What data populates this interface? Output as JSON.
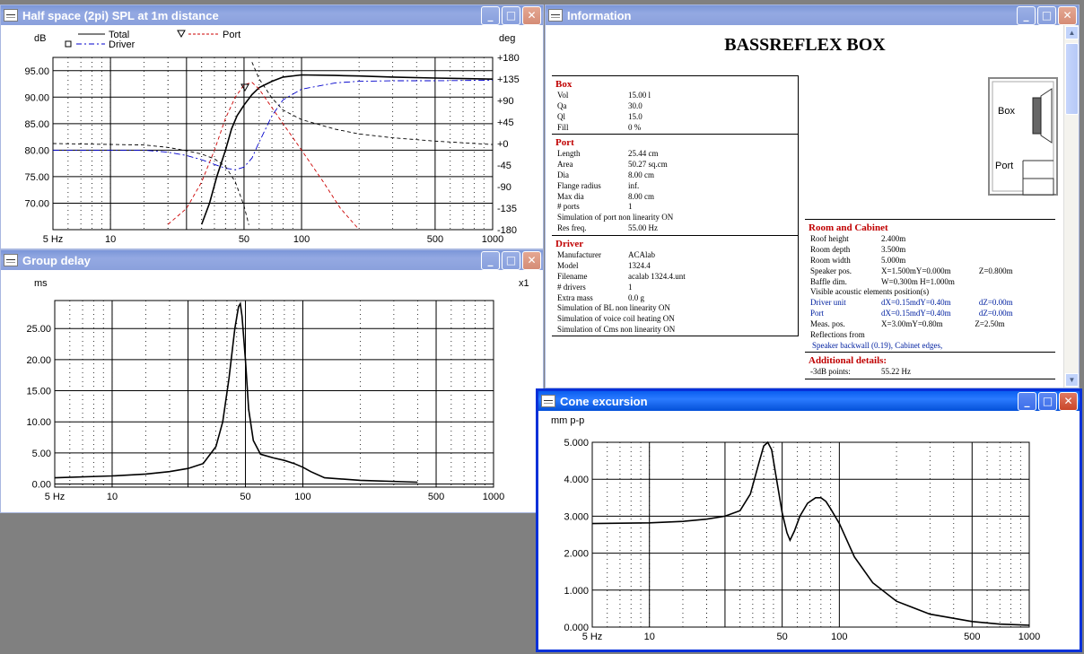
{
  "windows": {
    "spl": {
      "title": "Half space (2pi) SPL at 1m distance",
      "ylabel_left": "dB",
      "ylabel_right": "deg",
      "legend": {
        "total": "Total",
        "driver": "Driver",
        "port": "Port"
      }
    },
    "group_delay": {
      "title": "Group delay",
      "ylabel": "ms",
      "scale": "x1"
    },
    "cone": {
      "title": "Cone excursion",
      "ylabel": "mm p-p"
    },
    "info": {
      "title": "Information"
    }
  },
  "colors": {
    "total": "#000000",
    "driver": "#0000CC",
    "port": "#CC0000",
    "section_header": "#C00000",
    "link": "#0020A0"
  },
  "info": {
    "doc_title": "BASSREFLEX BOX",
    "box": {
      "header": "Box",
      "rows": [
        {
          "k": "Vol",
          "v": "15.00 l"
        },
        {
          "k": "Qa",
          "v": "30.0"
        },
        {
          "k": "Ql",
          "v": "15.0"
        },
        {
          "k": "Fill",
          "v": "0 %"
        }
      ]
    },
    "port": {
      "header": "Port",
      "rows": [
        {
          "k": "Length",
          "v": "25.44 cm"
        },
        {
          "k": "Area",
          "v": "50.27 sq.cm"
        },
        {
          "k": "Dia",
          "v": "8.00 cm"
        },
        {
          "k": "Flange radius",
          "v": "inf."
        },
        {
          "k": "Max dia",
          "v": "8.00 cm"
        },
        {
          "k": "# ports",
          "v": "1"
        },
        {
          "k": "Simulation of port non linearity ON",
          "v": ""
        },
        {
          "k": "Res freq.",
          "v": "55.00 Hz"
        }
      ]
    },
    "driver": {
      "header": "Driver",
      "rows": [
        {
          "k": "Manufacturer",
          "v": "ACAlab"
        },
        {
          "k": "Model",
          "v": "1324.4"
        },
        {
          "k": "Filename",
          "v": "acalab 1324.4.unt"
        },
        {
          "k": "# drivers",
          "v": "1"
        },
        {
          "k": "Extra mass",
          "v": "0.0 g"
        },
        {
          "k": "Simulation of BL non linearity ON",
          "v": ""
        },
        {
          "k": "Simulation of voice coil heating ON",
          "v": ""
        },
        {
          "k": "Simulation of Cms non linearity ON",
          "v": ""
        }
      ]
    },
    "room": {
      "header": "Room and Cabinet",
      "rows": [
        {
          "k": "Roof height",
          "v": "2.400m",
          "v2": "",
          "v3": ""
        },
        {
          "k": "Room depth",
          "v": "3.500m",
          "v2": "",
          "v3": ""
        },
        {
          "k": "Room width",
          "v": "5.000m",
          "v2": "",
          "v3": ""
        },
        {
          "k": "Speaker pos.",
          "v": "X=1.500m",
          "v2": "Y=0.000m",
          "v3": "Z=0.800m"
        },
        {
          "k": "Baffle dim.",
          "v": "W=0.300m H=1.000m",
          "v2": "",
          "v3": ""
        },
        {
          "k": "Visible acoustic elements position(s)",
          "v": "",
          "v2": "",
          "v3": ""
        },
        {
          "k": "Driver unit",
          "v": "dX=0.15m",
          "v2": "dY=0.40m",
          "v3": "dZ=0.00m",
          "blue": true
        },
        {
          "k": "Port",
          "v": "dX=0.15m",
          "v2": "dY=0.40m",
          "v3": "dZ=0.00m",
          "blue": true
        },
        {
          "k": "Meas. pos.",
          "v": "X=3.00m",
          "v2": "Y=0.80m",
          "v3": "Z=2.50m"
        },
        {
          "k": "Reflections from",
          "v": "",
          "v2": "",
          "v3": ""
        }
      ],
      "reflections": "Speaker backwall (0.19), Cabinet edges,"
    },
    "additional": {
      "header": "Additional details:",
      "rows": [
        {
          "k": "-3dB points:",
          "v": "55.22 Hz"
        }
      ]
    },
    "diagram": {
      "box_label": "Box",
      "port_label": "Port"
    }
  },
  "chart_data": [
    {
      "type": "line",
      "title": "Half space (2pi) SPL at 1m distance",
      "xscale": "log",
      "xlim": [
        5,
        1000
      ],
      "xticks": [
        "5 Hz",
        "10",
        "50",
        "100",
        "500",
        "1000"
      ],
      "ylabel": "dB",
      "ylim": [
        65,
        97.5
      ],
      "yticks": [
        "95.00",
        "90.00",
        "85.00",
        "80.00",
        "75.00",
        "70.00"
      ],
      "y2label": "deg",
      "y2lim": [
        -180,
        180
      ],
      "y2ticks": [
        "+180",
        "+135",
        "+90",
        "+45",
        "+0",
        "-45",
        "-90",
        "-135",
        "-180"
      ],
      "grid": true,
      "legend_position": "top",
      "series": [
        {
          "name": "Total",
          "style": "solid",
          "axis": "left",
          "x": [
            30,
            33,
            36,
            40,
            43,
            46,
            50,
            55,
            60,
            70,
            80,
            100,
            150,
            200,
            300,
            500,
            700,
            1000
          ],
          "y": [
            66,
            70,
            75,
            80,
            84,
            86.5,
            88.5,
            90.5,
            91.8,
            93,
            93.8,
            94.2,
            94.1,
            94,
            93.8,
            93.6,
            93.5,
            93.4
          ]
        },
        {
          "name": "Driver",
          "style": "dashdot",
          "axis": "left",
          "x": [
            5,
            10,
            15,
            20,
            25,
            30,
            35,
            40,
            45,
            50,
            55,
            60,
            70,
            80,
            100,
            150,
            200,
            300,
            500,
            1000
          ],
          "y": [
            80,
            80,
            80,
            79.6,
            79,
            78.2,
            77.3,
            76.6,
            76.3,
            76.8,
            78.5,
            81.5,
            86.5,
            89.5,
            91.5,
            92.7,
            93,
            93.1,
            93.1,
            93.2
          ]
        },
        {
          "name": "Port",
          "style": "dashed",
          "axis": "left",
          "x": [
            20,
            25,
            30,
            35,
            40,
            45,
            50,
            55,
            60,
            70,
            80,
            100,
            130,
            160,
            200
          ],
          "y": [
            66,
            69,
            74,
            80,
            86,
            90,
            92.3,
            92.8,
            91.5,
            88,
            85,
            80,
            74,
            69,
            65
          ]
        },
        {
          "name": "Phase",
          "style": "dashed",
          "axis": "right",
          "x": [
            5,
            15,
            20,
            25,
            30,
            35,
            40,
            45,
            50,
            53,
            55,
            60,
            70,
            80,
            100,
            150,
            200,
            300,
            500,
            1000
          ],
          "y": [
            0,
            -3,
            -8,
            -15,
            -22,
            -32,
            -48,
            -80,
            -130,
            -170,
            170,
            135,
            95,
            70,
            50,
            30,
            20,
            12,
            5,
            -2
          ]
        }
      ]
    },
    {
      "type": "line",
      "title": "Group delay",
      "xscale": "log",
      "xlim": [
        5,
        1000
      ],
      "xticks": [
        "5 Hz",
        "10",
        "50",
        "100",
        "500",
        "1000"
      ],
      "ylabel": "ms",
      "ylim": [
        -0.5,
        29.5
      ],
      "yticks": [
        "25.00",
        "20.00",
        "15.00",
        "10.00",
        "5.00",
        "0.00"
      ],
      "grid": true,
      "series": [
        {
          "name": "",
          "style": "solid",
          "x": [
            5,
            10,
            15,
            20,
            25,
            30,
            35,
            38,
            41,
            44,
            46,
            47,
            48,
            50,
            52,
            55,
            60,
            70,
            80,
            90,
            100,
            110,
            130,
            200,
            400
          ],
          "y": [
            1,
            1.3,
            1.6,
            2,
            2.5,
            3.3,
            6,
            10,
            17,
            25,
            28.5,
            29,
            27,
            20,
            12,
            7,
            4.8,
            4.2,
            3.8,
            3.3,
            2.7,
            2,
            1,
            0.6,
            0.3
          ]
        }
      ]
    },
    {
      "type": "line",
      "title": "Cone excursion",
      "xscale": "log",
      "xlim": [
        5,
        1000
      ],
      "xticks": [
        "5 Hz",
        "10",
        "50",
        "100",
        "500",
        "1000"
      ],
      "ylabel": "mm p-p",
      "ylim": [
        0,
        5
      ],
      "yticks": [
        "5.000",
        "4.000",
        "3.000",
        "2.000",
        "1.000",
        "0.000"
      ],
      "grid": true,
      "series": [
        {
          "name": "",
          "style": "solid",
          "x": [
            5,
            10,
            15,
            20,
            25,
            30,
            34,
            38,
            40,
            42,
            44,
            46,
            50,
            53,
            55,
            58,
            62,
            68,
            75,
            80,
            85,
            90,
            100,
            120,
            150,
            200,
            300,
            500,
            700,
            1000
          ],
          "y": [
            2.8,
            2.82,
            2.86,
            2.92,
            3.0,
            3.15,
            3.6,
            4.5,
            4.9,
            5.0,
            4.8,
            4.2,
            3.1,
            2.55,
            2.35,
            2.6,
            3.0,
            3.35,
            3.5,
            3.5,
            3.4,
            3.2,
            2.8,
            1.9,
            1.2,
            0.7,
            0.35,
            0.15,
            0.08,
            0.05
          ]
        }
      ]
    }
  ]
}
